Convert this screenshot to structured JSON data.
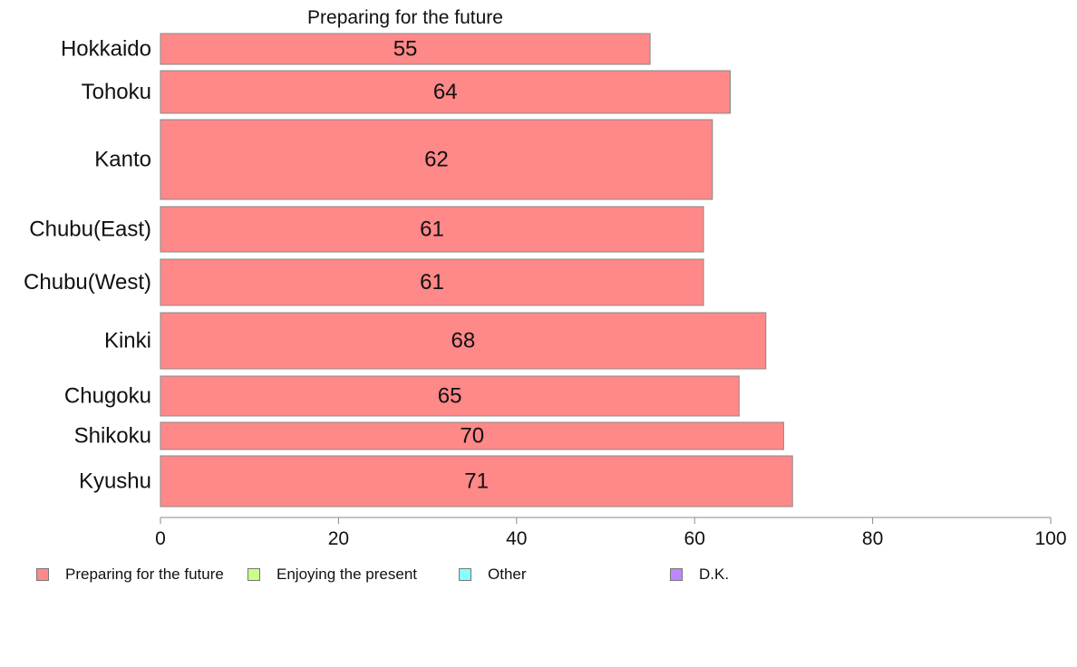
{
  "chart_data": {
    "type": "bar",
    "orientation": "horizontal",
    "title": "Preparing for the future",
    "categories": [
      "Hokkaido",
      "Tohoku",
      "Kanto",
      "Chubu(East)",
      "Chubu(West)",
      "Kinki",
      "Chugoku",
      "Shikoku",
      "Kyushu"
    ],
    "series": [
      {
        "name": "Preparing for the future",
        "values": [
          55,
          64,
          62,
          61,
          61,
          68,
          65,
          70,
          71
        ]
      }
    ],
    "data_labels": [
      "55",
      "64",
      "62",
      "61",
      "61",
      "68",
      "65",
      "70",
      "71"
    ],
    "xlim": [
      0,
      100
    ],
    "x_ticks": [
      "0",
      "20",
      "40",
      "60",
      "80",
      "100"
    ],
    "grid": false,
    "legend_position": "bottom"
  },
  "legend": [
    {
      "label": "Preparing for the future",
      "color": "#FF8888"
    },
    {
      "label": "Enjoying the present",
      "color": "#CCFF88"
    },
    {
      "label": "Other",
      "color": "#88FFFF"
    },
    {
      "label": "D.K.",
      "color": "#BB88FF"
    }
  ],
  "colors": {
    "bar": "#FF8888",
    "bar_border": "#888888",
    "axis": "#888888"
  }
}
